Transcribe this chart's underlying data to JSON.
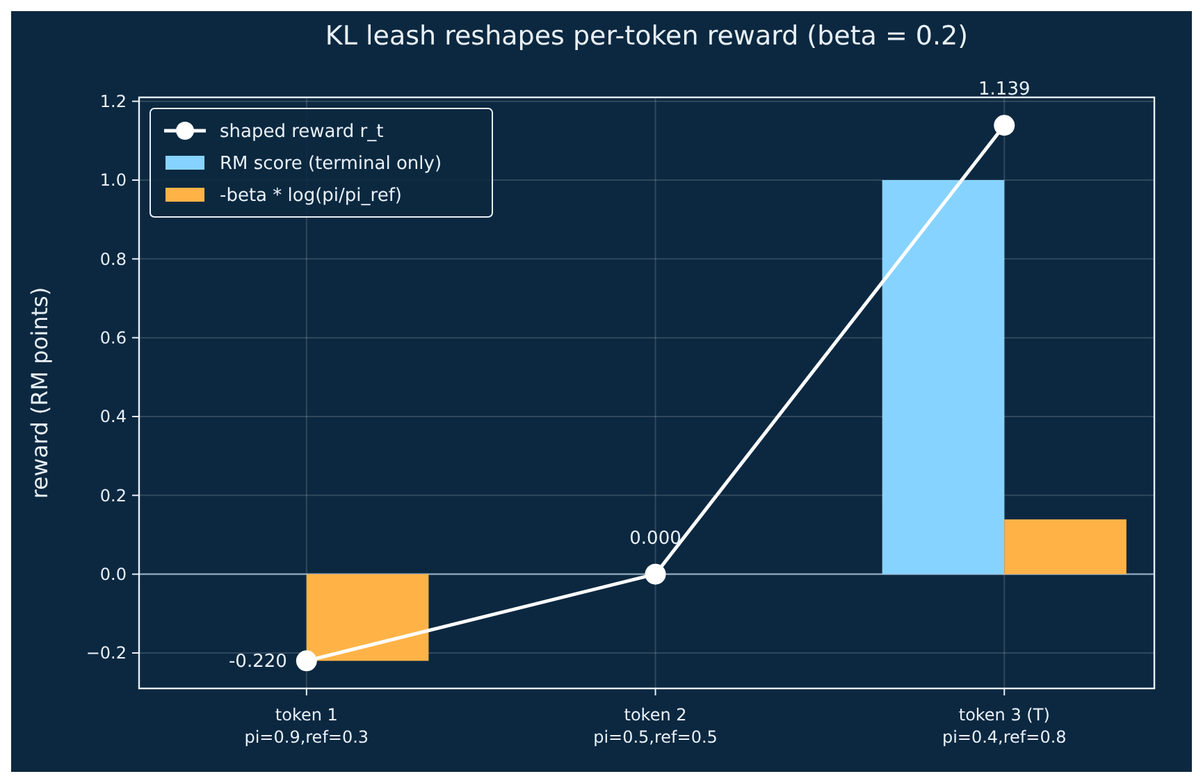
{
  "chart_data": {
    "type": "bar",
    "title": "KL leash reshapes per-token reward (beta = 0.2)",
    "ylabel": "reward (RM points)",
    "categories": [
      "token 1\npi=0.9,ref=0.3",
      "token 2\npi=0.5,ref=0.5",
      "token 3 (T)\npi=0.4,ref=0.8"
    ],
    "series": [
      {
        "name": "shaped reward r_t",
        "type": "line",
        "color": "#ffffff",
        "values": [
          -0.22,
          0.0,
          1.139
        ],
        "value_labels": [
          "-0.220",
          "0.000",
          "1.139"
        ]
      },
      {
        "name": "RM score (terminal only)",
        "color": "#87d3ff",
        "values": [
          0,
          0,
          1.0
        ]
      },
      {
        "name": "-beta * log(pi/pi_ref)",
        "color": "#ffb347",
        "values": [
          -0.22,
          0,
          0.139
        ]
      }
    ],
    "ylim": [
      -0.29,
      1.21
    ],
    "yticks": [
      {
        "value": -0.2,
        "label": "−0.2"
      },
      {
        "value": 0,
        "label": "0.0"
      },
      {
        "value": 0.2,
        "label": "0.2"
      },
      {
        "value": 0.4,
        "label": "0.4"
      },
      {
        "value": 0.6,
        "label": "0.6"
      },
      {
        "value": 0.8,
        "label": "0.8"
      },
      {
        "value": 1.0,
        "label": "1.0"
      },
      {
        "value": 1.2,
        "label": "1.2"
      }
    ],
    "ref_lines": [
      {
        "axis": "y",
        "value": 0,
        "color": "#8fa9bf"
      }
    ],
    "grid": true,
    "legend": "top left",
    "marker": "circle",
    "line_style": "solid"
  }
}
